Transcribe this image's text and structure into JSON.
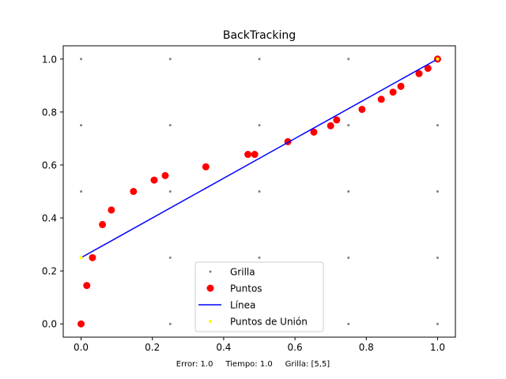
{
  "chart_data": {
    "type": "scatter",
    "title": "BackTracking",
    "xlabel": "",
    "ylabel": "",
    "xlim": [
      -0.05,
      1.05
    ],
    "ylim": [
      -0.05,
      1.05
    ],
    "xticks": [
      0.0,
      0.2,
      0.4,
      0.6,
      0.8,
      1.0
    ],
    "xtick_labels": [
      "0.0",
      "0.2",
      "0.4",
      "0.6",
      "0.8",
      "1.0"
    ],
    "yticks": [
      0.0,
      0.2,
      0.4,
      0.6,
      0.8,
      1.0
    ],
    "ytick_labels": [
      "0.0",
      "0.2",
      "0.4",
      "0.6",
      "0.8",
      "1.0"
    ],
    "grid": false,
    "legend_position": "bottom-center",
    "series": [
      {
        "name": "Grilla",
        "kind": "scatter",
        "color": "#808080",
        "points": [
          [
            0,
            0
          ],
          [
            0.25,
            0
          ],
          [
            0.5,
            0
          ],
          [
            0.75,
            0
          ],
          [
            1,
            0
          ],
          [
            0,
            0.25
          ],
          [
            0.25,
            0.25
          ],
          [
            0.5,
            0.25
          ],
          [
            0.75,
            0.25
          ],
          [
            1,
            0.25
          ],
          [
            0,
            0.5
          ],
          [
            0.25,
            0.5
          ],
          [
            0.5,
            0.5
          ],
          [
            0.75,
            0.5
          ],
          [
            1,
            0.5
          ],
          [
            0,
            0.75
          ],
          [
            0.25,
            0.75
          ],
          [
            0.5,
            0.75
          ],
          [
            0.75,
            0.75
          ],
          [
            1,
            0.75
          ],
          [
            0,
            1
          ],
          [
            0.25,
            1
          ],
          [
            0.5,
            1
          ],
          [
            0.75,
            1
          ],
          [
            1,
            1
          ]
        ]
      },
      {
        "name": "Puntos",
        "kind": "scatter",
        "color": "#ff0000",
        "points": [
          [
            0.0,
            0.0
          ],
          [
            0.016,
            0.145
          ],
          [
            0.032,
            0.25
          ],
          [
            0.06,
            0.375
          ],
          [
            0.085,
            0.43
          ],
          [
            0.147,
            0.5
          ],
          [
            0.205,
            0.543
          ],
          [
            0.236,
            0.56
          ],
          [
            0.35,
            0.593
          ],
          [
            0.468,
            0.64
          ],
          [
            0.487,
            0.64
          ],
          [
            0.58,
            0.688
          ],
          [
            0.653,
            0.724
          ],
          [
            0.7,
            0.748
          ],
          [
            0.717,
            0.77
          ],
          [
            0.788,
            0.81
          ],
          [
            0.842,
            0.848
          ],
          [
            0.875,
            0.875
          ],
          [
            0.897,
            0.897
          ],
          [
            0.948,
            0.945
          ],
          [
            0.973,
            0.965
          ],
          [
            1.0,
            1.0
          ]
        ]
      },
      {
        "name": "Línea",
        "kind": "line",
        "color": "#0000ff",
        "points": [
          [
            0.0,
            0.25
          ],
          [
            1.0,
            1.0
          ]
        ]
      },
      {
        "name": "Puntos de Unión",
        "kind": "scatter",
        "color": "#ffff00",
        "points": [
          [
            0.0,
            0.25
          ],
          [
            1.0,
            1.0
          ]
        ]
      }
    ]
  },
  "footer": {
    "text": "Error: 1.0     Tiempo: 1.0     Grilla: [5,5]"
  }
}
